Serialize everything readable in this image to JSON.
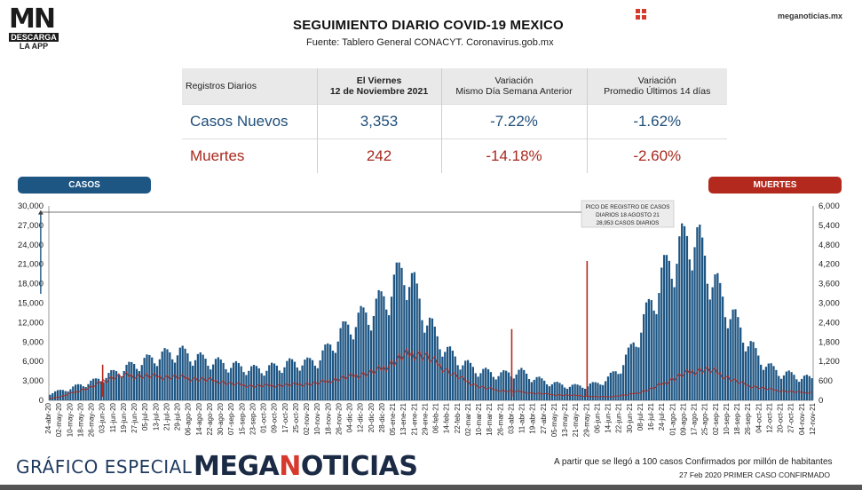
{
  "header": {
    "logo_mn": "MN",
    "logo_descarga": "DESCARGA",
    "logo_app": "LA APP",
    "title": "SEGUIMIENTO DIARIO COVID-19 MEXICO",
    "subtitle": "Fuente: Tablero General CONACYT. Coronavirus.gob.mx",
    "site": "meganoticias.mx",
    "grid_icon_color": "#d63a2f"
  },
  "table": {
    "headers": [
      "Registros Diarios",
      "El Viernes",
      "12 de Noviembre 2021",
      "Variación",
      "Mismo Día Semana Anterior",
      "Variación",
      "Promedio Últimos 14 días"
    ],
    "rows": [
      {
        "label": "Casos Nuevos",
        "value": "3,353",
        "var_week": "-7.22%",
        "var_14": "-1.62%",
        "color": "#1f4e79"
      },
      {
        "label": "Muertes",
        "value": "242",
        "var_week": "-14.18%",
        "var_14": "-2.60%",
        "color": "#a8281d"
      }
    ]
  },
  "labels": {
    "casos": "CASOS",
    "muertes": "MUERTES",
    "annotation": [
      "PICO DE REGISTRO DE CASOS",
      "DIARIOS 18 AGOSTO 21",
      "28,953 CASOS DIARIOS"
    ]
  },
  "chart_data": {
    "type": "bar",
    "x_axis_dates": [
      "24-abr-20",
      "02-may-20",
      "10-may-20",
      "18-may-20",
      "26-may-20",
      "03-jun-20",
      "11-jun-20",
      "19-jun-20",
      "27-jun-20",
      "05-jul-20",
      "13-jul-20",
      "21-jul-20",
      "29-jul-20",
      "06-ago-20",
      "14-ago-20",
      "22-ago-20",
      "30-ago-20",
      "07-sep-20",
      "15-sep-20",
      "23-sep-20",
      "01-oct-20",
      "09-oct-20",
      "17-oct-20",
      "25-oct-20",
      "02-nov-20",
      "10-nov-20",
      "18-nov-20",
      "26-nov-20",
      "04-dic-20",
      "12-dic-20",
      "20-dic-20",
      "28-dic-20",
      "05-ene-21",
      "13-ene-21",
      "21-ene-21",
      "29-ene-21",
      "06-feb-21",
      "14-feb-21",
      "22-feb-21",
      "02-mar-21",
      "10-mar-21",
      "18-mar-21",
      "26-mar-21",
      "03-abr-21",
      "11-abr-21",
      "19-abr-21",
      "27-abr-21",
      "05-may-21",
      "13-may-21",
      "21-may-21",
      "29-may-21",
      "06-jun-21",
      "14-jun-21",
      "22-jun-21",
      "30-jun-21",
      "08-jul-21",
      "16-jul-21",
      "24-jul-21",
      "01-ago-21",
      "09-ago-21",
      "17-ago-21",
      "25-ago-21",
      "02-sep-21",
      "10-sep-21",
      "18-sep-21",
      "26-sep-21",
      "04-oct-21",
      "12-oct-21",
      "20-oct-21",
      "27-oct-21",
      "04-nov-21",
      "12-nov-21"
    ],
    "series": [
      {
        "name": "CASOS",
        "axis": "left",
        "color": "#1d5583",
        "values": [
          1100,
          1500,
          1900,
          2500,
          2900,
          3600,
          4300,
          5000,
          5600,
          6200,
          6800,
          7200,
          7600,
          7000,
          6500,
          6100,
          5700,
          5400,
          5100,
          4800,
          4900,
          5200,
          5600,
          5900,
          5800,
          6400,
          8200,
          10200,
          11800,
          12800,
          13900,
          15500,
          17800,
          20700,
          17200,
          13000,
          9900,
          7700,
          6300,
          5400,
          4600,
          4300,
          4000,
          4300,
          4400,
          3500,
          3000,
          2600,
          2300,
          2200,
          2300,
          2600,
          3400,
          4800,
          7400,
          11000,
          15000,
          19000,
          22000,
          24200,
          26000,
          22000,
          17900,
          14700,
          12000,
          9200,
          6800,
          5200,
          4300,
          4000,
          3600,
          3353
        ],
        "peak": {
          "date": "18-ago-21",
          "value": 28953
        }
      },
      {
        "name": "MUERTES",
        "axis": "right",
        "color": "#b3291e",
        "values": [
          60,
          110,
          220,
          330,
          420,
          600,
          720,
          760,
          760,
          740,
          730,
          720,
          710,
          680,
          650,
          620,
          570,
          500,
          470,
          440,
          450,
          460,
          470,
          490,
          500,
          530,
          600,
          670,
          730,
          800,
          860,
          980,
          1180,
          1380,
          1450,
          1360,
          1150,
          920,
          720,
          560,
          420,
          350,
          300,
          280,
          260,
          220,
          200,
          170,
          160,
          150,
          130,
          110,
          110,
          140,
          180,
          250,
          350,
          500,
          650,
          800,
          900,
          950,
          880,
          720,
          580,
          460,
          400,
          340,
          300,
          270,
          240,
          242
        ]
      }
    ],
    "spikes": [
      {
        "series": "MUERTES",
        "date": "03-jun-20",
        "value": 1100
      },
      {
        "series": "MUERTES",
        "date": "03-abr-21",
        "value": 2200
      },
      {
        "series": "MUERTES",
        "date": "29-may-21",
        "value": 4300
      }
    ],
    "ylim_left": [
      0,
      30000
    ],
    "yticks_left": [
      "0",
      "3,000",
      "6,000",
      "9,000",
      "12,000",
      "15,000",
      "18,000",
      "21,000",
      "24,000",
      "27,000",
      "30,000"
    ],
    "ylim_right": [
      0,
      6000
    ],
    "yticks_right": [
      "0",
      "600",
      "1,200",
      "1,800",
      "2,400",
      "3,000",
      "3,600",
      "4,200",
      "4,800",
      "5,400",
      "6,000"
    ],
    "grid": false
  },
  "footer": {
    "left_text": "GRÁFICO ESPECIAL",
    "brand_1": "MEGA",
    "brand_2": "N",
    "brand_3": "OTICIAS",
    "note1": "A partir que se llegó a 100 casos Confirmados por millón de habitantes",
    "note2": "27 Feb 2020 PRIMER CASO CONFIRMADO"
  }
}
